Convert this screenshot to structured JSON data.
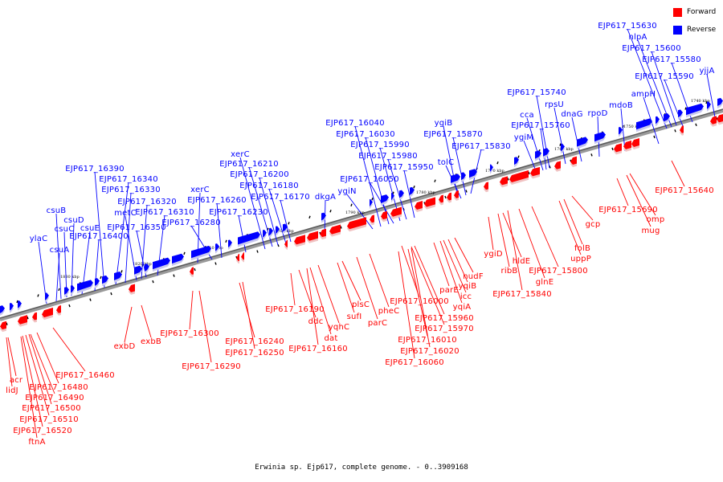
{
  "legend": {
    "forward_label": "Forward",
    "reverse_label": "Reverse",
    "forward_color": "#ff0000",
    "reverse_color": "#0000ff"
  },
  "caption": "Erwinia sp. Ejp617, complete genome. - 0..3909168",
  "scale_ticks": [
    "1830 kbp",
    "1820 kbp",
    "1810 kbp",
    "1800 kbp",
    "1790 kbp",
    "1780 kbp",
    "1770 kbp",
    "1760 kbp",
    "1750 kbp",
    "1740 kbp"
  ],
  "reverse_genes": [
    "ylaC",
    "csuA",
    "csuB",
    "csuC",
    "csuD",
    "csuE",
    "EJP617_16400",
    "EJP617_16390",
    "EJP617_16340",
    "EJP617_16330",
    "metC",
    "EJP617_16350",
    "EJP617_16320",
    "EJP617_16310",
    "xerC",
    "EJP617_16260",
    "EJP617_16280",
    "EJP617_16230",
    "xerC",
    "EJP617_16210",
    "EJP617_16200",
    "EJP617_16180",
    "EJP617_16170",
    "dkgA",
    "EJP617_16040",
    "EJP617_16030",
    "EJP617_15990",
    "EJP617_15980",
    "EJP617_15950",
    "EJP617_16050",
    "ygiN",
    "ygiB",
    "EJP617_15870",
    "tolC",
    "EJP617_15830",
    "EJP617_15740",
    "cca",
    "EJP617_15760",
    "ygiM",
    "rpsU",
    "dnaG",
    "rpoD",
    "mdoB",
    "ampH",
    "EJP617_15630",
    "nlpA",
    "EJP617_15600",
    "EJP617_15580",
    "EJP617_15590",
    "yjjA"
  ],
  "forward_genes": [
    "acr",
    "lidJ",
    "EJP617_16460",
    "EJP617_16480",
    "EJP617_16490",
    "EJP617_16500",
    "EJP617_16510",
    "EJP617_16520",
    "ftnA",
    "exbD",
    "exbB",
    "EJP617_16300",
    "EJP617_16290",
    "EJP617_16240",
    "EJP617_16250",
    "EJP617_16190",
    "ddc",
    "yqhC",
    "dat",
    "EJP617_16160",
    "plsC",
    "sufI",
    "parC",
    "pheC",
    "EJP617_16000",
    "parE",
    "icc",
    "yqiA",
    "yqiB",
    "nudF",
    "EJP617_15960",
    "EJP617_15970",
    "EJP617_16010",
    "EJP617_16020",
    "EJP617_16060",
    "ygiD",
    "ribB",
    "hldE",
    "glnE",
    "EJP617_15800",
    "EJP617_15840",
    "folB",
    "uppP",
    "gcp",
    "EJP617_15690",
    "omp",
    "mug",
    "EJP617_15640"
  ]
}
